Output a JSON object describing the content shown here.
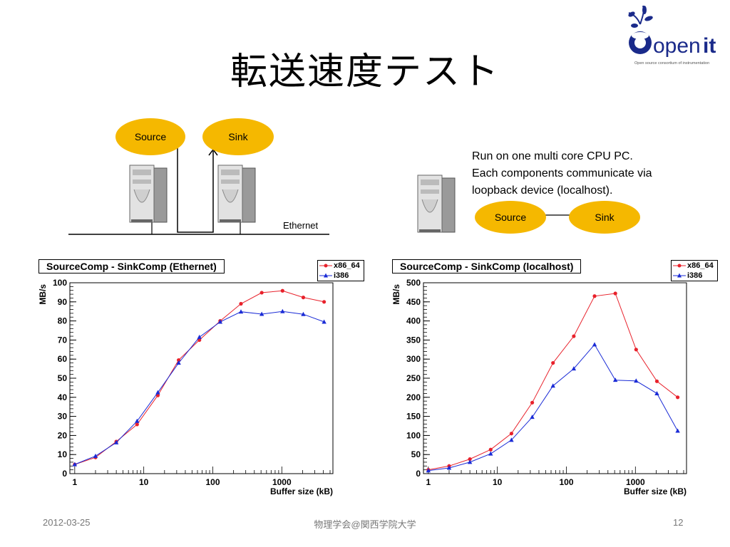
{
  "slide": {
    "title": "転送速度テスト",
    "date": "2012-03-25",
    "venue": "物理学会@関西学院大学",
    "page": "12"
  },
  "logo": {
    "text_open": "open",
    "text_it": "it",
    "tagline": "Open source consortium of instrumentation"
  },
  "diagram_ethernet": {
    "source_label": "Source",
    "sink_label": "Sink",
    "ethernet_label": "Ethernet"
  },
  "diagram_localhost": {
    "caption_lines": [
      "Run on one multi core CPU PC.",
      "Each components communicate via",
      "loopback device (localhost)."
    ],
    "source_label": "Source",
    "sink_label": "Sink"
  },
  "colors": {
    "ellipse": "#f5b800",
    "x86_64": "#e8212b",
    "i386": "#1a2bd6"
  },
  "chart_data": [
    {
      "type": "line",
      "title": "SourceComp - SinkComp (Ethernet)",
      "xlabel": "Buffer size (kB)",
      "ylabel": "MB/s",
      "xscale": "log",
      "xlim": [
        0.85,
        5500
      ],
      "ylim": [
        0,
        100
      ],
      "yticks": [
        0,
        10,
        20,
        30,
        40,
        50,
        60,
        70,
        80,
        90,
        100
      ],
      "xticks": [
        1,
        10,
        100,
        1000
      ],
      "xtick_labels": [
        "1",
        "10",
        "100",
        "1000"
      ],
      "legend": "top-right",
      "x": [
        1,
        2,
        4,
        8,
        16,
        32,
        64,
        128,
        256,
        512,
        1024,
        2048,
        4096
      ],
      "series": [
        {
          "name": "x86_64",
          "marker": "circle",
          "values": [
            4.8,
            8.5,
            16.8,
            25.8,
            41,
            59.5,
            70,
            80,
            89,
            94.8,
            95.8,
            92.3,
            90
          ]
        },
        {
          "name": "i386",
          "marker": "triangle",
          "values": [
            4.8,
            9.2,
            16.3,
            27.5,
            42.5,
            58,
            71.5,
            79.5,
            84.8,
            83.6,
            85,
            83.5,
            79.5
          ]
        }
      ]
    },
    {
      "type": "line",
      "title": "SourceComp - SinkComp (localhost)",
      "xlabel": "Buffer size (kB)",
      "ylabel": "MB/s",
      "xscale": "log",
      "xlim": [
        0.85,
        5500
      ],
      "ylim": [
        0,
        500
      ],
      "yticks": [
        0,
        50,
        100,
        150,
        200,
        250,
        300,
        350,
        400,
        450,
        500
      ],
      "xticks": [
        1,
        10,
        100,
        1000
      ],
      "xtick_labels": [
        "1",
        "10",
        "100",
        "1000"
      ],
      "legend": "top-right",
      "x": [
        1,
        2,
        4,
        8,
        16,
        32,
        64,
        128,
        256,
        512,
        1024,
        2048,
        4096
      ],
      "series": [
        {
          "name": "x86_64",
          "marker": "circle",
          "values": [
            10,
            20,
            38,
            63,
            105,
            186,
            290,
            360,
            465,
            472,
            325,
            242,
            200
          ]
        },
        {
          "name": "i386",
          "marker": "triangle",
          "values": [
            8,
            15,
            30,
            52,
            88,
            148,
            230,
            275,
            338,
            245,
            243,
            210,
            112
          ]
        }
      ]
    }
  ]
}
